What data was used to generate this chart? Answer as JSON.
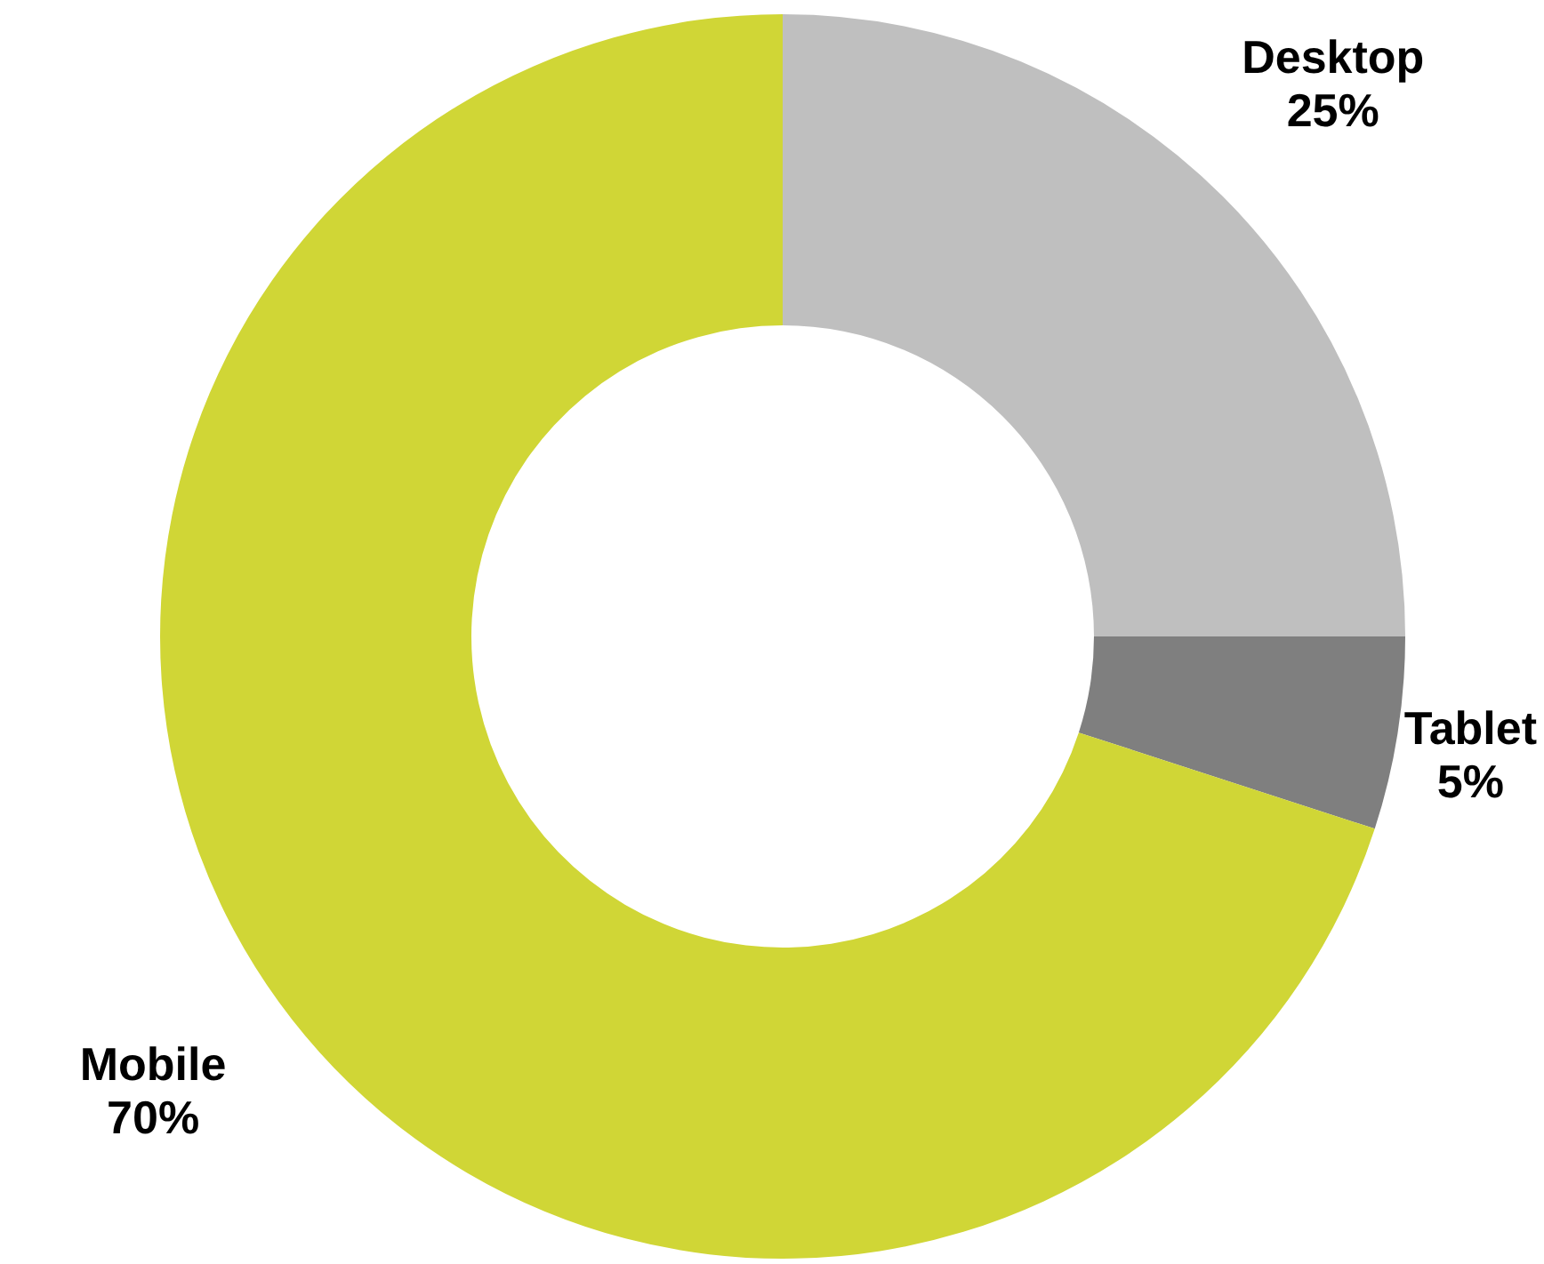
{
  "chart_data": {
    "type": "donut",
    "categories": [
      "Desktop",
      "Tablet",
      "Mobile"
    ],
    "values": [
      25,
      5,
      70
    ],
    "colors": [
      "#bfbfbf",
      "#7f7f7f",
      "#d0d636"
    ],
    "value_labels": [
      "25%",
      "5%",
      "70%"
    ],
    "legend": false
  }
}
